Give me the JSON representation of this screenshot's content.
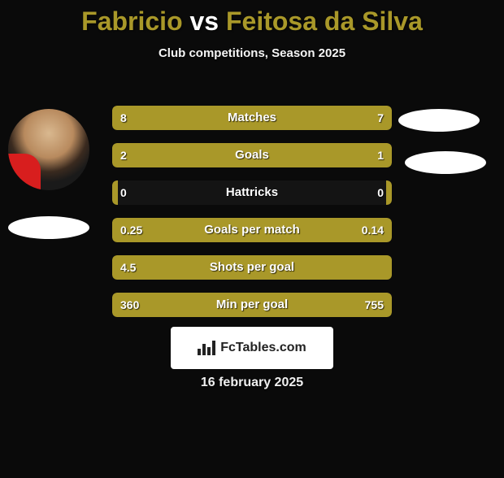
{
  "title": {
    "player1": "Fabricio",
    "vs": "vs",
    "player2": "Feitosa da Silva",
    "player1_color": "#a99829",
    "vs_color": "#ffffff",
    "player2_color": "#a99829"
  },
  "subtitle": "Club competitions, Season 2025",
  "bar_color_left": "#a99829",
  "bar_color_right": "#a99829",
  "bar_bg": "#222218",
  "stats": [
    {
      "label": "Matches",
      "left_val": "8",
      "right_val": "7",
      "left_pct": 53,
      "right_pct": 47
    },
    {
      "label": "Goals",
      "left_val": "2",
      "right_val": "1",
      "left_pct": 67,
      "right_pct": 33
    },
    {
      "label": "Hattricks",
      "left_val": "0",
      "right_val": "0",
      "left_pct": 2,
      "right_pct": 2
    },
    {
      "label": "Goals per match",
      "left_val": "0.25",
      "right_val": "0.14",
      "left_pct": 64,
      "right_pct": 36
    },
    {
      "label": "Shots per goal",
      "left_val": "4.5",
      "right_val": "",
      "left_pct": 100,
      "right_pct": 0
    },
    {
      "label": "Min per goal",
      "left_val": "360",
      "right_val": "755",
      "left_pct": 32,
      "right_pct": 68
    }
  ],
  "branding": "FcTables.com",
  "date": "16 february 2025"
}
